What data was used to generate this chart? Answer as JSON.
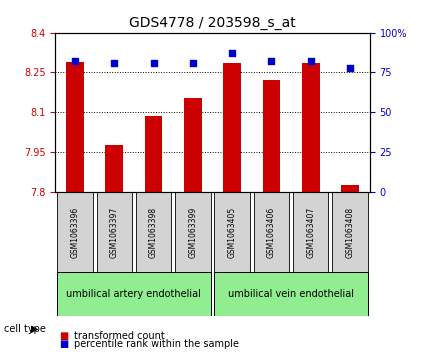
{
  "title": "GDS4778 / 203598_s_at",
  "samples": [
    "GSM1063396",
    "GSM1063397",
    "GSM1063398",
    "GSM1063399",
    "GSM1063405",
    "GSM1063406",
    "GSM1063407",
    "GSM1063408"
  ],
  "transformed_count": [
    8.29,
    7.975,
    8.085,
    8.155,
    8.285,
    8.22,
    8.285,
    7.825
  ],
  "percentile_rank": [
    82,
    81,
    81,
    81,
    87,
    82,
    82,
    78
  ],
  "ylim_left": [
    7.8,
    8.4
  ],
  "ylim_right": [
    0,
    100
  ],
  "yticks_left": [
    7.8,
    7.95,
    8.1,
    8.25,
    8.4
  ],
  "yticks_right": [
    0,
    25,
    50,
    75,
    100
  ],
  "bar_color": "#cc0000",
  "dot_color": "#0000cc",
  "bar_bottom": 7.8,
  "cell_type_labels": [
    "umbilical artery endothelial",
    "umbilical vein endothelial"
  ],
  "cell_type_groups": [
    4,
    4
  ],
  "cell_type_color": "#90ee90",
  "sample_box_color": "#d3d3d3",
  "label_legend_red": "transformed count",
  "label_legend_blue": "percentile rank within the sample",
  "tick_label_color_left": "#cc0000",
  "tick_label_color_right": "#0000cc",
  "title_fontsize": 10,
  "label_fontsize": 7,
  "legend_fontsize": 7,
  "celltype_fontsize": 7
}
